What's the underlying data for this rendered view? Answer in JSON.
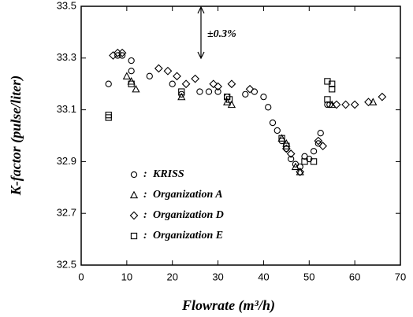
{
  "chart_data": {
    "type": "scatter",
    "xlabel": "Flowrate (m³/h)",
    "ylabel": "K-factor (pulse/liter)",
    "annotation": "±0.3%",
    "legend_separator": ":",
    "xlim": [
      0,
      70
    ],
    "xticks": [
      0,
      10,
      20,
      30,
      40,
      50,
      60,
      70
    ],
    "ylim": [
      32.5,
      33.5
    ],
    "yticks": [
      32.5,
      32.7,
      32.9,
      33.1,
      33.3,
      33.5
    ],
    "color": "#000000",
    "series": [
      {
        "name": "KRISS",
        "marker": "circle",
        "x": [
          6,
          8,
          9,
          11,
          11,
          15,
          20,
          22,
          26,
          28,
          30,
          32,
          36,
          38,
          40,
          41,
          42,
          43,
          44,
          45,
          46,
          47,
          48,
          49,
          50,
          51,
          52,
          52.5,
          54,
          54.5
        ],
        "values": [
          33.2,
          33.31,
          33.31,
          33.29,
          33.25,
          33.23,
          33.2,
          33.16,
          33.17,
          33.17,
          33.17,
          33.15,
          33.16,
          33.17,
          33.15,
          33.11,
          33.05,
          33.02,
          32.98,
          32.95,
          32.91,
          32.89,
          32.88,
          32.92,
          32.91,
          32.94,
          32.97,
          33.01,
          33.12,
          33.12
        ]
      },
      {
        "name": "Organization A",
        "marker": "triangle",
        "x": [
          10,
          11,
          12,
          22,
          32,
          33,
          44,
          45,
          47,
          48,
          55,
          64
        ],
        "values": [
          33.23,
          33.21,
          33.18,
          33.15,
          33.13,
          33.12,
          32.99,
          32.97,
          32.88,
          32.86,
          33.12,
          33.13
        ]
      },
      {
        "name": "Organization D",
        "marker": "diamond",
        "x": [
          7,
          8,
          9,
          17,
          19,
          21,
          23,
          25,
          29,
          30,
          33,
          37,
          45,
          46,
          48,
          52,
          53,
          56,
          58,
          60,
          63,
          66
        ],
        "values": [
          33.31,
          33.32,
          33.32,
          33.26,
          33.25,
          33.23,
          33.2,
          33.22,
          33.2,
          33.19,
          33.2,
          33.18,
          32.95,
          32.93,
          32.86,
          32.98,
          32.96,
          33.12,
          33.12,
          33.12,
          33.13,
          33.15
        ]
      },
      {
        "name": "Organization E",
        "marker": "square",
        "x": [
          6,
          6,
          11,
          22,
          32,
          32.5,
          44,
          45,
          49,
          51,
          54,
          55,
          55,
          54
        ],
        "values": [
          33.08,
          33.07,
          33.2,
          33.17,
          33.15,
          33.14,
          32.99,
          32.96,
          32.9,
          32.9,
          33.21,
          33.2,
          33.18,
          33.14
        ]
      }
    ]
  }
}
